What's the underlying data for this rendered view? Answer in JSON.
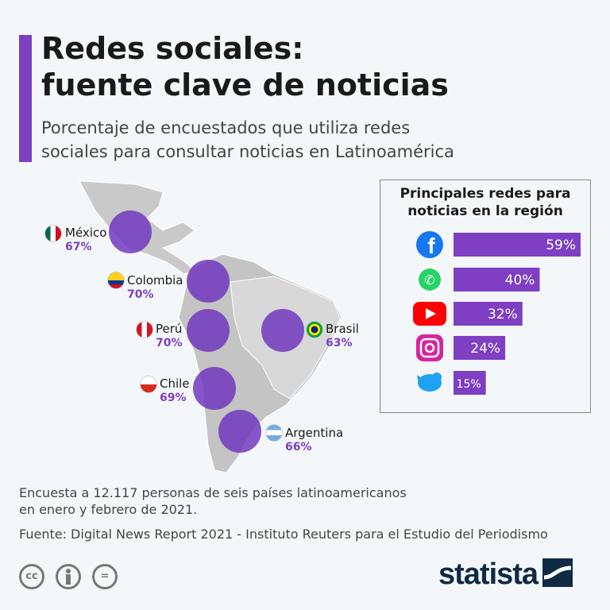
{
  "header": {
    "title_line1": "Redes sociales:",
    "title_line2": "fuente clave de noticias",
    "subtitle_line1": "Porcentaje de encuestados que utiliza redes",
    "subtitle_line2": "sociales para consultar noticias en Latinoamérica"
  },
  "map": {
    "countries": [
      {
        "name": "México",
        "value": "67%"
      },
      {
        "name": "Colombia",
        "value": "70%"
      },
      {
        "name": "Perú",
        "value": "70%"
      },
      {
        "name": "Brasil",
        "value": "63%"
      },
      {
        "name": "Chile",
        "value": "69%"
      },
      {
        "name": "Argentina",
        "value": "66%"
      }
    ]
  },
  "chart_data": {
    "type": "bar",
    "title": "Principales redes para noticias en la región",
    "title_line1": "Principales redes para",
    "title_line2": "noticias en la región",
    "categories": [
      "Facebook",
      "WhatsApp",
      "YouTube",
      "Instagram",
      "Twitter"
    ],
    "values": [
      59,
      40,
      32,
      24,
      15
    ],
    "labels": [
      "59%",
      "40%",
      "32%",
      "24%",
      "15%"
    ],
    "unit": "%",
    "color": "#7e3fc2"
  },
  "footer": {
    "note_line1": "Encuesta a 12.117 personas de seis países latinoamericanos",
    "note_line2": "en enero y febrero de 2021.",
    "source": "Fuente: Digital News Report 2021 - Instituto Reuters para el Estudio del Periodismo",
    "brand": "statista",
    "license_cc": "cc",
    "license_nd": "="
  },
  "colors": {
    "accent": "#7e3fc2",
    "brand": "#0f2a45"
  }
}
